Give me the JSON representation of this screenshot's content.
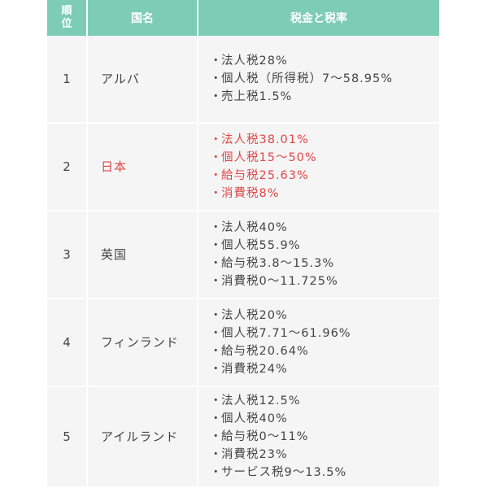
{
  "table": {
    "headers": {
      "rank": "順位",
      "country": "国名",
      "tax": "税金と税率"
    },
    "bullet": "・",
    "colors": {
      "header_bg": "#7dccb4",
      "cell_bg": "#f5f5f5",
      "highlight": "#e04848"
    },
    "rows": [
      {
        "rank": "1",
        "country": "アルバ",
        "taxes": [
          "法人税28%",
          "個人税（所得税）7〜58.95%",
          "売上税1.5%"
        ]
      },
      {
        "rank": "2",
        "country": "日本",
        "highlight": true,
        "taxes": [
          "法人税38.01%",
          "個人税15〜50%",
          "給与税25.63%",
          "消費税8%"
        ]
      },
      {
        "rank": "3",
        "country": "英国",
        "taxes": [
          "法人税40%",
          "個人税55.9%",
          "給与税3.8〜15.3%",
          "消費税0〜11.725%"
        ]
      },
      {
        "rank": "4",
        "country": "フィンランド",
        "taxes": [
          "法人税20%",
          "個人税7.71〜61.96%",
          "給与税20.64%",
          "消費税24%"
        ]
      },
      {
        "rank": "5",
        "country": "アイルランド",
        "taxes": [
          "法人税12.5%",
          "個人税40%",
          "給与税0〜11%",
          "消費税23%",
          "サービス税9〜13.5%"
        ]
      }
    ]
  }
}
